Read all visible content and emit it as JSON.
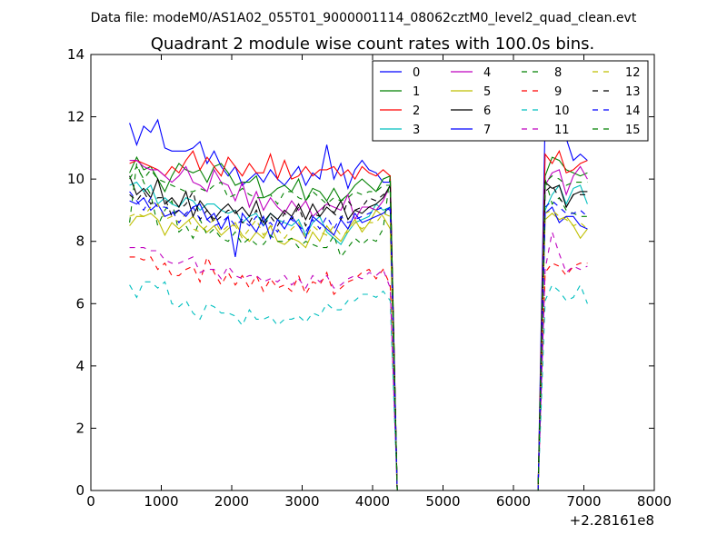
{
  "chart_data": {
    "type": "line",
    "suptitle": "Data file: modeM0/AS1A02_055T01_9000001114_08062cztM0_level2_quad_clean.evt",
    "title": "Quadrant 2 module wise count rates with 100.0s bins.",
    "xlabel": "",
    "ylabel": "",
    "xlim": [
      0,
      8000
    ],
    "ylim": [
      0,
      14
    ],
    "x_offset_label": "+2.28161e8",
    "x_ticks": [
      0,
      1000,
      2000,
      3000,
      4000,
      5000,
      6000,
      7000,
      8000
    ],
    "y_ticks": [
      0,
      2,
      4,
      6,
      8,
      10,
      12,
      14
    ],
    "legend_position": "top-right",
    "legend_columns": 4,
    "x": [
      550,
      650,
      750,
      850,
      950,
      1050,
      1150,
      1250,
      1350,
      1450,
      1550,
      1650,
      1750,
      1850,
      1950,
      2050,
      2150,
      2250,
      2350,
      2450,
      2550,
      2650,
      2750,
      2850,
      2950,
      3050,
      3150,
      3250,
      3350,
      3450,
      3550,
      3650,
      3750,
      3850,
      3950,
      4050,
      4150,
      4250,
      4350,
      4450,
      4550,
      4650,
      4750,
      4850,
      4950,
      5050,
      5150,
      5250,
      5350,
      5450,
      5550,
      5650,
      5750,
      5850,
      5950,
      6050,
      6150,
      6250,
      6350,
      6450,
      6550,
      6650,
      6750,
      6850,
      6950,
      7050
    ],
    "series": [
      {
        "name": "0",
        "color": "#0000ff",
        "dash": "solid",
        "values": [
          11.8,
          11.1,
          11.7,
          11.5,
          11.9,
          11.0,
          10.9,
          10.9,
          10.9,
          11.0,
          11.2,
          10.5,
          10.9,
          10.4,
          10.1,
          10.4,
          9.8,
          10.0,
          10.2,
          9.9,
          10.3,
          10.0,
          9.8,
          10.1,
          10.4,
          9.8,
          10.2,
          10.0,
          11.1,
          10.0,
          10.5,
          9.7,
          10.3,
          10.6,
          10.3,
          10.2,
          9.9,
          9.9,
          0,
          0,
          0,
          0,
          0,
          0,
          0,
          0,
          0,
          0,
          0,
          0,
          0,
          0,
          0,
          0,
          0,
          0,
          0,
          0,
          0,
          12.0,
          12.1,
          11.5,
          11.3,
          10.6,
          10.8,
          10.6
        ]
      },
      {
        "name": "1",
        "color": "#008000",
        "dash": "solid",
        "values": [
          10.2,
          10.7,
          10.3,
          10.4,
          10.0,
          9.6,
          10.1,
          10.5,
          10.3,
          10.2,
          10.3,
          9.9,
          10.4,
          10.5,
          10.2,
          9.8,
          9.9,
          9.9,
          10.1,
          9.4,
          9.5,
          9.7,
          9.8,
          9.6,
          10.0,
          9.3,
          9.7,
          9.6,
          9.3,
          9.7,
          9.3,
          9.5,
          9.8,
          10.0,
          9.8,
          9.6,
          10.0,
          10.1,
          0,
          0,
          0,
          0,
          0,
          0,
          0,
          0,
          0,
          0,
          0,
          0,
          0,
          0,
          0,
          0,
          0,
          0,
          0,
          0,
          0,
          10.1,
          10.7,
          10.6,
          10.3,
          10.2,
          10.1,
          10.2
        ]
      },
      {
        "name": "2",
        "color": "#ff0000",
        "dash": "solid",
        "values": [
          10.5,
          10.6,
          10.5,
          10.4,
          10.3,
          10.1,
          10.4,
          10.2,
          10.6,
          10.9,
          10.3,
          10.7,
          10.4,
          10.1,
          10.7,
          10.4,
          10.1,
          10.5,
          10.2,
          10.2,
          10.8,
          10.0,
          10.6,
          10.0,
          10.1,
          10.4,
          10.1,
          10.3,
          10.3,
          10.4,
          10.1,
          10.3,
          10.0,
          10.4,
          10.2,
          10.1,
          10.3,
          10.1,
          0,
          0,
          0,
          0,
          0,
          0,
          0,
          0,
          0,
          0,
          0,
          0,
          0,
          0,
          0,
          0,
          0,
          0,
          0,
          0,
          0,
          10.8,
          10.5,
          10.9,
          10.2,
          10.3,
          10.5,
          10.6
        ]
      },
      {
        "name": "3",
        "color": "#00bfbf",
        "dash": "solid",
        "values": [
          9.8,
          9.9,
          9.6,
          9.8,
          9.2,
          9.4,
          9.2,
          9.1,
          9.4,
          9.3,
          9.0,
          9.2,
          9.2,
          9.0,
          8.9,
          9.0,
          8.6,
          8.8,
          8.9,
          8.5,
          8.9,
          8.7,
          8.6,
          8.5,
          8.7,
          8.2,
          8.6,
          8.8,
          8.3,
          8.1,
          7.9,
          8.3,
          8.6,
          8.7,
          8.8,
          9.2,
          9.0,
          9.1,
          0,
          0,
          0,
          0,
          0,
          0,
          0,
          0,
          0,
          0,
          0,
          0,
          0,
          0,
          0,
          0,
          0,
          0,
          0,
          0,
          0,
          9.0,
          9.5,
          9.8,
          9.2,
          9.7,
          9.8,
          9.2
        ]
      },
      {
        "name": "4",
        "color": "#bf00bf",
        "dash": "solid",
        "values": [
          10.6,
          10.6,
          10.4,
          10.3,
          10.3,
          10.1,
          9.9,
          10.1,
          10.4,
          9.9,
          9.8,
          9.6,
          10.3,
          9.9,
          9.8,
          9.3,
          9.9,
          9.1,
          9.6,
          9.0,
          9.4,
          9.1,
          8.9,
          9.3,
          9.0,
          9.3,
          8.8,
          9.0,
          9.2,
          9.1,
          9.0,
          9.5,
          8.7,
          9.1,
          9.1,
          9.0,
          9.3,
          9.8,
          0,
          0,
          0,
          0,
          0,
          0,
          0,
          0,
          0,
          0,
          0,
          0,
          0,
          0,
          0,
          0,
          0,
          0,
          0,
          0,
          0,
          9.8,
          10.2,
          10.3,
          9.5,
          10.1,
          10.4,
          10.0
        ]
      },
      {
        "name": "5",
        "color": "#bfbf00",
        "dash": "solid",
        "values": [
          8.5,
          8.8,
          8.8,
          8.9,
          8.7,
          8.2,
          8.6,
          8.4,
          8.6,
          8.8,
          8.5,
          8.3,
          8.5,
          8.2,
          8.4,
          8.6,
          8.2,
          8.0,
          8.3,
          8.1,
          8.5,
          8.0,
          7.9,
          8.1,
          8.0,
          7.8,
          8.3,
          8.0,
          8.5,
          8.2,
          8.0,
          8.4,
          8.7,
          8.3,
          8.6,
          9.0,
          8.8,
          8.4,
          0,
          0,
          0,
          0,
          0,
          0,
          0,
          0,
          0,
          0,
          0,
          0,
          0,
          0,
          0,
          0,
          0,
          0,
          0,
          0,
          0,
          8.7,
          8.9,
          8.7,
          8.8,
          8.5,
          8.1,
          8.4
        ]
      },
      {
        "name": "6",
        "color": "#000000",
        "dash": "solid",
        "values": [
          10.1,
          9.5,
          9.7,
          9.4,
          10.0,
          9.2,
          9.4,
          9.1,
          9.6,
          8.8,
          9.3,
          9.0,
          8.7,
          9.0,
          9.2,
          8.9,
          9.1,
          8.8,
          9.3,
          8.6,
          8.9,
          8.7,
          9.0,
          8.8,
          9.2,
          8.7,
          9.2,
          8.8,
          9.1,
          8.9,
          9.3,
          8.7,
          9.0,
          8.9,
          9.1,
          9.2,
          9.4,
          9.8,
          0,
          0,
          0,
          0,
          0,
          0,
          0,
          0,
          0,
          0,
          0,
          0,
          0,
          0,
          0,
          0,
          0,
          0,
          0,
          0,
          0,
          9.9,
          9.7,
          9.8,
          9.1,
          9.5,
          9.6,
          9.6
        ]
      },
      {
        "name": "7",
        "color": "#0000ff",
        "dash": "solid",
        "values": [
          9.3,
          9.2,
          9.4,
          9.0,
          9.2,
          8.8,
          8.9,
          9.0,
          8.8,
          9.1,
          9.2,
          8.7,
          8.9,
          8.4,
          8.8,
          7.5,
          8.9,
          8.6,
          8.3,
          8.8,
          8.1,
          8.7,
          8.4,
          8.8,
          8.5,
          8.1,
          8.8,
          8.6,
          8.4,
          8.2,
          8.7,
          8.4,
          8.9,
          8.6,
          8.7,
          8.8,
          8.9,
          9.1,
          0,
          0,
          0,
          0,
          0,
          0,
          0,
          0,
          0,
          0,
          0,
          0,
          0,
          0,
          0,
          0,
          0,
          0,
          0,
          0,
          0,
          8.9,
          9.1,
          8.6,
          8.8,
          8.8,
          8.5,
          8.4
        ]
      },
      {
        "name": "8",
        "color": "#008000",
        "dash": "dashed",
        "values": [
          8.6,
          10.5,
          9.9,
          9.5,
          8.5,
          9.0,
          9.3,
          8.3,
          8.5,
          8.1,
          8.7,
          8.2,
          8.4,
          8.1,
          8.0,
          8.3,
          7.9,
          8.1,
          7.9,
          7.9,
          8.2,
          8.0,
          8.0,
          8.1,
          7.8,
          8.0,
          7.9,
          7.8,
          7.8,
          8.2,
          7.5,
          7.8,
          8.1,
          7.9,
          8.1,
          8.0,
          8.4,
          10.1,
          0,
          0,
          0,
          0,
          0,
          0,
          0,
          0,
          0,
          0,
          0,
          0,
          0,
          0,
          0,
          0,
          0,
          0,
          0,
          0,
          0,
          10.0,
          9.2,
          9.4,
          9.0,
          8.9,
          8.8,
          8.8
        ]
      },
      {
        "name": "9",
        "color": "#ff0000",
        "dash": "dashed",
        "values": [
          7.5,
          7.5,
          7.4,
          7.5,
          7.1,
          7.3,
          6.9,
          6.9,
          7.1,
          7.2,
          6.7,
          7.5,
          7.0,
          6.6,
          7.0,
          6.6,
          6.9,
          6.5,
          6.9,
          6.4,
          6.8,
          6.5,
          6.6,
          6.4,
          6.9,
          6.3,
          6.7,
          6.6,
          7.0,
          6.3,
          6.5,
          6.7,
          6.8,
          7.0,
          7.1,
          6.8,
          7.1,
          6.6,
          0,
          0,
          0,
          0,
          0,
          0,
          0,
          0,
          0,
          0,
          0,
          0,
          0,
          0,
          0,
          0,
          0,
          0,
          0,
          0,
          0,
          7.0,
          7.3,
          7.2,
          6.9,
          7.2,
          7.3,
          7.3
        ]
      },
      {
        "name": "10",
        "color": "#00bfbf",
        "dash": "dashed",
        "values": [
          6.6,
          6.2,
          6.7,
          6.7,
          6.5,
          6.7,
          6.0,
          5.9,
          6.1,
          5.7,
          5.5,
          6.0,
          5.9,
          5.7,
          5.7,
          5.6,
          5.3,
          5.8,
          5.5,
          5.5,
          5.6,
          5.3,
          5.5,
          5.5,
          5.6,
          5.4,
          5.7,
          5.6,
          6.0,
          5.8,
          5.8,
          6.1,
          6.1,
          6.3,
          6.3,
          6.2,
          6.4,
          6.1,
          0,
          0,
          0,
          0,
          0,
          0,
          0,
          0,
          0,
          0,
          0,
          0,
          0,
          0,
          0,
          0,
          0,
          0,
          0,
          0,
          0,
          6.1,
          6.6,
          6.4,
          6.1,
          6.2,
          6.6,
          6.0
        ]
      },
      {
        "name": "11",
        "color": "#bf00bf",
        "dash": "dashed",
        "values": [
          7.8,
          7.8,
          7.8,
          7.7,
          7.7,
          7.4,
          7.3,
          7.3,
          7.4,
          7.5,
          7.0,
          7.1,
          7.1,
          6.8,
          7.2,
          6.9,
          6.8,
          6.9,
          6.9,
          6.7,
          6.8,
          6.7,
          6.9,
          6.6,
          6.8,
          6.5,
          6.9,
          6.7,
          6.9,
          6.5,
          6.6,
          6.8,
          6.9,
          6.8,
          7.0,
          6.9,
          7.1,
          6.5,
          0,
          0,
          0,
          0,
          0,
          0,
          0,
          0,
          0,
          0,
          0,
          0,
          0,
          0,
          0,
          0,
          0,
          0,
          0,
          0,
          0,
          7.1,
          8.3,
          7.6,
          7.0,
          7.2,
          7.1,
          7.2
        ]
      },
      {
        "name": "12",
        "color": "#bfbf00",
        "dash": "dashed",
        "values": [
          8.8,
          8.9,
          8.8,
          9.1,
          9.2,
          8.7,
          8.8,
          8.6,
          8.9,
          8.4,
          8.3,
          8.5,
          8.7,
          8.3,
          8.5,
          8.5,
          8.1,
          8.4,
          8.7,
          8.2,
          8.5,
          8.4,
          8.1,
          8.4,
          8.6,
          8.1,
          8.5,
          8.3,
          8.2,
          8.5,
          8.2,
          8.3,
          8.6,
          8.4,
          8.6,
          8.6,
          8.9,
          8.8,
          0,
          0,
          0,
          0,
          0,
          0,
          0,
          0,
          0,
          0,
          0,
          0,
          0,
          0,
          0,
          0,
          0,
          0,
          0,
          0,
          0,
          8.9,
          9.0,
          8.8,
          8.7,
          8.5,
          8.6,
          8.4
        ]
      },
      {
        "name": "13",
        "color": "#000000",
        "dash": "dashed",
        "values": [
          9.5,
          9.3,
          9.6,
          9.2,
          9.4,
          9.4,
          8.8,
          9.0,
          9.2,
          9.6,
          8.7,
          9.0,
          8.6,
          8.8,
          9.0,
          9.0,
          8.6,
          8.6,
          9.0,
          8.5,
          8.8,
          8.5,
          8.9,
          8.7,
          9.1,
          8.5,
          8.9,
          8.8,
          9.3,
          8.9,
          8.7,
          9.3,
          9.0,
          9.1,
          9.4,
          9.3,
          9.5,
          9.6,
          0,
          0,
          0,
          0,
          0,
          0,
          0,
          0,
          0,
          0,
          0,
          0,
          0,
          0,
          0,
          0,
          0,
          0,
          0,
          0,
          0,
          9.6,
          9.8,
          9.4,
          9.1,
          9.5,
          9.5,
          9.5
        ]
      },
      {
        "name": "14",
        "color": "#0000ff",
        "dash": "dashed",
        "values": [
          9.6,
          9.3,
          9.0,
          9.4,
          9.1,
          9.1,
          9.0,
          8.6,
          8.9,
          9.1,
          8.7,
          8.7,
          8.5,
          8.6,
          8.8,
          8.5,
          8.7,
          8.5,
          8.8,
          8.5,
          8.6,
          8.3,
          8.7,
          8.7,
          8.5,
          8.3,
          8.7,
          8.4,
          8.8,
          8.4,
          8.8,
          8.6,
          8.7,
          8.8,
          8.9,
          9.0,
          9.1,
          9.0,
          0,
          0,
          0,
          0,
          0,
          0,
          0,
          0,
          0,
          0,
          0,
          0,
          0,
          0,
          0,
          0,
          0,
          0,
          0,
          0,
          0,
          9.1,
          9.3,
          9.1,
          8.9,
          8.9,
          9.0,
          8.8
        ]
      },
      {
        "name": "15",
        "color": "#008000",
        "dash": "dashed",
        "values": [
          10.0,
          10.4,
          10.0,
          10.3,
          10.0,
          9.9,
          9.8,
          9.7,
          9.6,
          9.6,
          9.7,
          9.6,
          9.8,
          9.9,
          9.4,
          9.5,
          9.7,
          9.5,
          9.4,
          9.4,
          9.5,
          9.2,
          9.6,
          9.6,
          9.4,
          9.3,
          9.6,
          9.4,
          9.2,
          9.4,
          9.3,
          9.4,
          9.6,
          9.5,
          9.6,
          9.6,
          9.8,
          9.8,
          0,
          0,
          0,
          0,
          0,
          0,
          0,
          0,
          0,
          0,
          0,
          0,
          0,
          0,
          0,
          0,
          0,
          0,
          0,
          0,
          0,
          9.9,
          10.1,
          10.0,
          9.8,
          9.9,
          9.9,
          9.9
        ]
      }
    ]
  }
}
